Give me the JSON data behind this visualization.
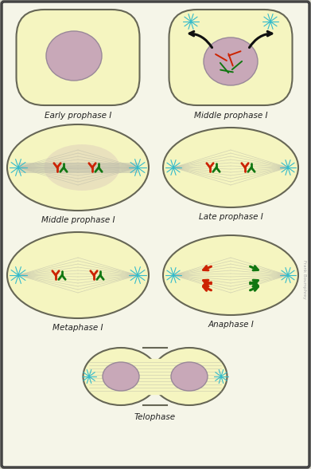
{
  "bg_color": "#d8d8cc",
  "cell_fill": "#f5f5c0",
  "cell_edge": "#666655",
  "nucleus_fill": "#c8a8b8",
  "spindle_color": "#bbbbaa",
  "aster_color": "#33bbcc",
  "red_chrom": "#cc2200",
  "green_chrom": "#117711",
  "arrow_color": "#111111",
  "panel_bg": "#f5f5e8",
  "labels": [
    "Early prophase I",
    "Middle prophase I",
    "Middle prophase I",
    "Late prophase I",
    "Metaphase I",
    "Anaphase I",
    "Telophase"
  ],
  "label_fontsize": 7.5,
  "figsize": [
    3.91,
    5.88
  ],
  "dpi": 100
}
